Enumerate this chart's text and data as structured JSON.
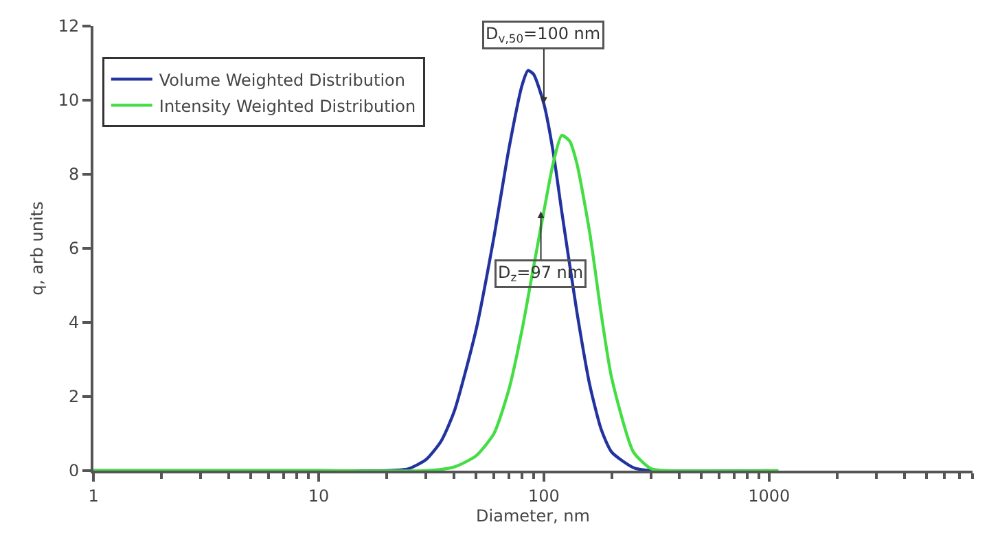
{
  "chart_data": {
    "type": "line",
    "xlabel": "Diameter, nm",
    "ylabel": "q, arb units",
    "log": "x",
    "xlim": [
      1,
      8000
    ],
    "xticks": [
      1,
      10,
      100,
      1000
    ],
    "ylim": [
      0,
      12
    ],
    "yticks": [
      0,
      2,
      4,
      6,
      8,
      10,
      12
    ],
    "legend": "top left",
    "marker": "none",
    "line_style": "solid",
    "series": [
      {
        "name": "Volume Weighted Distribution",
        "color": "#2233a0",
        "x": [
          1,
          10,
          20,
          25,
          30,
          35,
          40,
          50,
          60,
          70,
          80,
          85,
          90,
          100,
          110,
          120,
          140,
          160,
          180,
          200,
          250,
          300,
          1000
        ],
        "values": [
          0,
          0,
          0,
          0.05,
          0.3,
          0.8,
          1.6,
          3.8,
          6.3,
          8.7,
          10.4,
          10.8,
          10.7,
          9.9,
          8.6,
          7.0,
          4.3,
          2.3,
          1.1,
          0.5,
          0.08,
          0,
          0
        ]
      },
      {
        "name": "Intensity Weighted Distribution",
        "color": "#44dd44",
        "x": [
          1,
          10,
          30,
          40,
          50,
          60,
          70,
          80,
          90,
          100,
          110,
          120,
          130,
          140,
          160,
          180,
          200,
          250,
          300,
          350,
          1100
        ],
        "values": [
          0,
          0,
          0,
          0.1,
          0.4,
          1.0,
          2.2,
          3.8,
          5.5,
          7.0,
          8.3,
          9.05,
          8.9,
          8.3,
          6.4,
          4.2,
          2.5,
          0.5,
          0.05,
          0,
          0
        ]
      }
    ],
    "annotations": [
      {
        "text": "D$_{v,50}$=100 nm",
        "x": 100,
        "y": 9.9
      },
      {
        "text": "D$_{z}$=97 nm",
        "x": 97,
        "y": 7
      }
    ]
  }
}
